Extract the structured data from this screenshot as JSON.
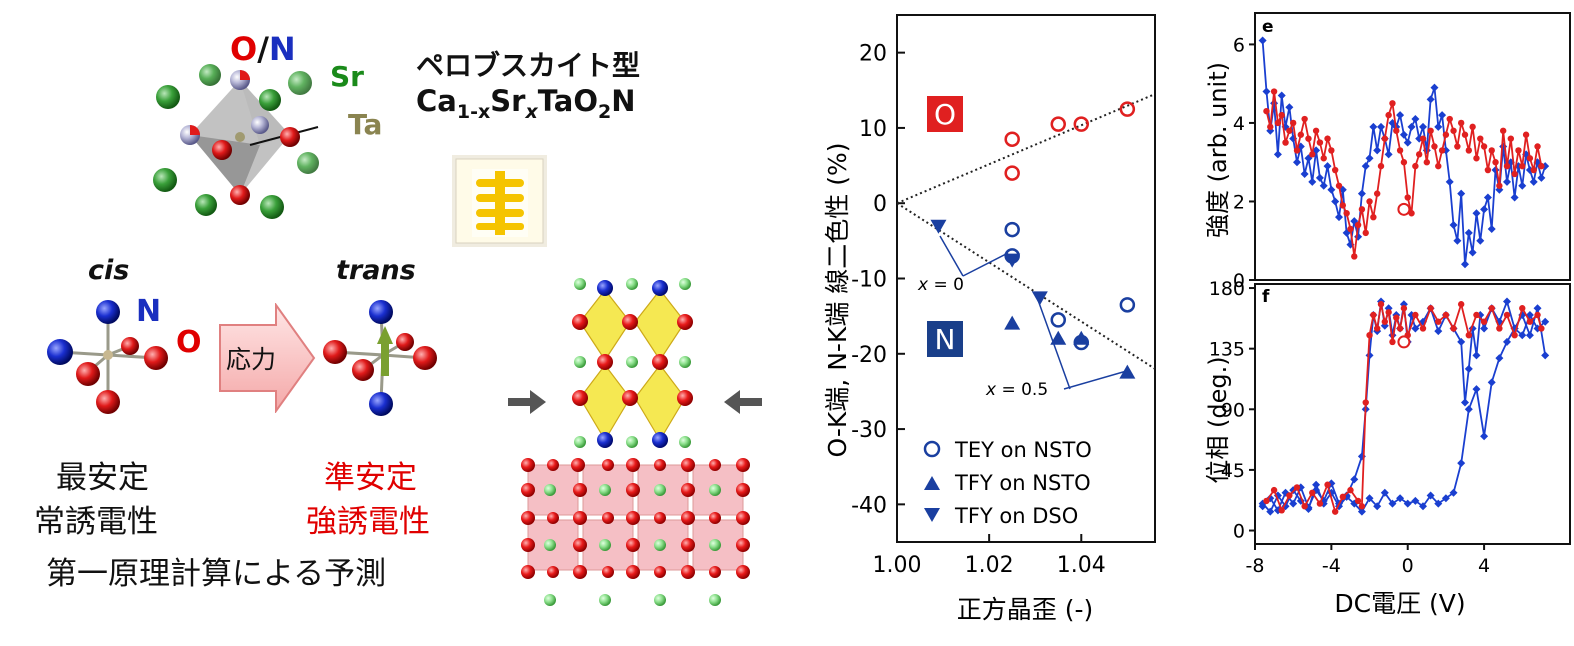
{
  "left_panel": {
    "on_label_o": "O",
    "on_label_slash": "/",
    "on_label_n": "N",
    "sr_label": "Sr",
    "ta_label": "Ta",
    "perovskite_title": "ペロブスカイト型",
    "formula_ca": "Ca",
    "formula_sub1": "1-x",
    "formula_sr": "Sr",
    "formula_subx": "x",
    "formula_tao": "TaO",
    "formula_sub2": "2",
    "formula_n": "N",
    "cis_label": "cis",
    "trans_label": "trans",
    "n_label": "N",
    "o_label": "O",
    "stress_label": "応力",
    "stable_line1": "最安定",
    "stable_line2": "常誘電性",
    "metastable_line1": "準安定",
    "metastable_line2": "強誘電性",
    "prediction": "第一原理計算による予測",
    "colors": {
      "oxygen": "#e8202a",
      "nitrogen": "#1e2fd0",
      "sr": "#2a9a2a",
      "ta": "#8a8a60"
    }
  },
  "chart_data": [
    {
      "type": "scatter",
      "title": "",
      "xlabel": "正方晶歪 (-)",
      "ylabel": "O-K端, N-K端 線二色性 (%)",
      "xlim": [
        1.0,
        1.056
      ],
      "ylim": [
        -45,
        25
      ],
      "xticks": [
        "1.00",
        "1.02",
        "1.04"
      ],
      "xtick_values": [
        1.0,
        1.02,
        1.04
      ],
      "yticks": [
        "20",
        "10",
        "0",
        "-10",
        "-20",
        "-30",
        "-40"
      ],
      "ytick_values": [
        20,
        10,
        0,
        -10,
        -20,
        -30,
        -40
      ],
      "box_o": "O",
      "box_n": "N",
      "annot_x0_var": "x",
      "annot_x0_val": " = 0",
      "annot_x05_var": "x",
      "annot_x05_val": " = 0.5",
      "legend": [
        "TEY on NSTO",
        "TFY on NSTO",
        "TFY on DSO"
      ],
      "series": [
        {
          "name": "O TEY",
          "color": "#e02020",
          "marker": "circle-open",
          "x": [
            1.025,
            1.025,
            1.035,
            1.04,
            1.05
          ],
          "y": [
            8.5,
            4.0,
            10.5,
            10.5,
            12.5
          ]
        },
        {
          "name": "TEY on NSTO",
          "color": "#1a3fa0",
          "marker": "circle-open",
          "x": [
            1.025,
            1.025,
            1.035,
            1.04,
            1.05
          ],
          "y": [
            -3.5,
            -7.0,
            -15.5,
            -18.5,
            -13.5
          ]
        },
        {
          "name": "TFY on NSTO",
          "color": "#1a3fa0",
          "marker": "triangle-up",
          "x": [
            1.025,
            1.035,
            1.04,
            1.05
          ],
          "y": [
            -16.0,
            -18.0,
            -18.0,
            -22.5
          ]
        },
        {
          "name": "TFY on DSO",
          "color": "#1a3fa0",
          "marker": "triangle-down",
          "x": [
            1.009,
            1.025,
            1.031
          ],
          "y": [
            -3.0,
            -7.5,
            -12.5
          ]
        }
      ],
      "trend_lines": [
        {
          "x": [
            1.0,
            1.056
          ],
          "y": [
            0,
            14.5
          ]
        },
        {
          "x": [
            1.0,
            1.056
          ],
          "y": [
            0,
            -22
          ]
        }
      ]
    },
    {
      "type": "line",
      "panel_label": "e",
      "ylabel": "強度 (arb. unit)",
      "xlim": [
        -8,
        8.5
      ],
      "ylim": [
        0,
        6.8
      ],
      "yticks": [
        "0",
        "2",
        "4",
        "6"
      ],
      "ytick_values": [
        0,
        2,
        4,
        6
      ],
      "series": [
        {
          "name": "blue",
          "color": "#1a3fd0",
          "marker": "diamond",
          "x": [
            -7.6,
            -7.4,
            -7.2,
            -7,
            -6.8,
            -6.6,
            -6.4,
            -6.2,
            -6,
            -5.8,
            -5.6,
            -5.4,
            -5.2,
            -5,
            -4.8,
            -4.6,
            -4.4,
            -4.2,
            -4,
            -3.8,
            -3.6,
            -3.4,
            -3.2,
            -3,
            -2.8,
            -2.6,
            -2.4,
            -2.2,
            -2,
            -1.8,
            -1.6,
            -1.4,
            -1.2,
            -1,
            -0.8,
            -0.6,
            -0.4,
            -0.2,
            0,
            0.2,
            0.4,
            0.6,
            0.8,
            1,
            1.2,
            1.4,
            1.6,
            1.8,
            2,
            2.2,
            2.4,
            2.6,
            2.8,
            3,
            3.2,
            3.4,
            3.6,
            3.8,
            4,
            4.2,
            4.4,
            4.6,
            4.8,
            5,
            5.2,
            5.4,
            5.6,
            5.8,
            6,
            6.2,
            6.4,
            6.6,
            6.8,
            7,
            7.2
          ],
          "y": [
            6.1,
            4.8,
            3.8,
            4.5,
            3.2,
            4.7,
            3.9,
            4.4,
            3.6,
            3.0,
            3.4,
            2.7,
            3.1,
            2.5,
            3.3,
            2.6,
            2.4,
            2.9,
            2.3,
            2.0,
            1.6,
            2.3,
            1.2,
            0.9,
            1.5,
            1.1,
            2.2,
            2.9,
            3.1,
            3.9,
            3.3,
            3.9,
            3.6,
            3.2,
            4.0,
            3.9,
            4.2,
            3.7,
            3.5,
            3.9,
            4.1,
            3.6,
            3.9,
            3.3,
            4.6,
            4.9,
            3.9,
            4.2,
            3.3,
            2.5,
            1.4,
            1.0,
            2.2,
            0.4,
            1.2,
            0.7,
            1.7,
            1.0,
            1.8,
            2.1,
            1.3,
            2.8,
            2.3,
            3.4,
            2.5,
            3.0,
            2.1,
            2.9,
            2.4,
            3.2,
            2.8,
            2.5,
            3.0,
            2.6,
            2.9
          ]
        },
        {
          "name": "red",
          "color": "#e02020",
          "marker": "circle",
          "x": [
            -7.4,
            -7.2,
            -7,
            -6.8,
            -6.6,
            -6.4,
            -6.2,
            -6,
            -5.8,
            -5.6,
            -5.4,
            -5.2,
            -5,
            -4.8,
            -4.6,
            -4.4,
            -4.2,
            -4,
            -3.8,
            -3.6,
            -3.4,
            -3.2,
            -3,
            -2.8,
            -2.6,
            -2.4,
            -2.2,
            -2,
            -1.8,
            -1.6,
            -1.4,
            -1.2,
            -1,
            -0.8,
            -0.6,
            -0.4,
            -0.2,
            0,
            0.2,
            0.4,
            0.6,
            0.8,
            1,
            1.2,
            1.4,
            1.6,
            1.8,
            2,
            2.2,
            2.4,
            2.6,
            2.8,
            3,
            3.2,
            3.4,
            3.6,
            3.8,
            4,
            4.2,
            4.4,
            4.6,
            4.8,
            5,
            5.2,
            5.4,
            5.6,
            5.8,
            6,
            6.2,
            6.4,
            6.6,
            6.8,
            7
          ],
          "y": [
            4.3,
            3.9,
            4.8,
            4.0,
            4.2,
            3.5,
            3.8,
            4.0,
            3.3,
            3.7,
            4.1,
            3.6,
            3.2,
            3.8,
            3.5,
            3.1,
            3.6,
            3.3,
            2.8,
            2.4,
            1.9,
            1.7,
            1.3,
            0.6,
            1.4,
            1.8,
            1.2,
            2.0,
            1.6,
            2.2,
            2.9,
            3.6,
            4.2,
            4.5,
            3.8,
            3.3,
            3.0,
            2.1,
            1.7,
            2.9,
            3.2,
            3.6,
            3.0,
            3.8,
            3.4,
            2.9,
            3.3,
            3.7,
            4.1,
            3.8,
            3.4,
            4.0,
            3.7,
            3.3,
            3.9,
            3.1,
            3.6,
            3.4,
            2.8,
            3.3,
            3.0,
            2.4,
            3.8,
            2.9,
            3.6,
            2.7,
            3.3,
            2.9,
            3.7,
            3.1,
            2.8,
            3.4,
            2.9
          ]
        }
      ],
      "open_marker": {
        "x": -0.2,
        "y": 1.8
      }
    },
    {
      "type": "line",
      "panel_label": "f",
      "ylabel": "位相 (deg.)",
      "xlabel": "DC電圧 (V)",
      "xlim": [
        -8,
        8.5
      ],
      "ylim": [
        -10,
        183
      ],
      "xticks": [
        "-8",
        "-4",
        "0",
        "4"
      ],
      "xtick_values": [
        -8,
        -4,
        0,
        4
      ],
      "yticks": [
        "0",
        "45",
        "90",
        "135",
        "180"
      ],
      "ytick_values": [
        0,
        45,
        90,
        135,
        180
      ],
      "series": [
        {
          "name": "blue",
          "color": "#1a3fd0",
          "marker": "diamond",
          "x": [
            -7.6,
            -7.2,
            -6.8,
            -6.4,
            -6,
            -5.6,
            -5.2,
            -4.8,
            -4.4,
            -4,
            -3.6,
            -3.2,
            -2.8,
            -2.4,
            -2.2,
            -2,
            -1.8,
            -1.6,
            -1.4,
            -1.2,
            -1,
            -0.8,
            -0.6,
            -0.4,
            -0.2,
            0,
            0.2,
            0.4,
            0.8,
            1.2,
            1.6,
            2,
            2.4,
            2.8,
            3,
            3.2,
            3.4,
            3.6,
            3.8,
            4,
            4.4,
            4.8,
            5.2,
            5.6,
            6,
            6.4,
            6.8,
            7.2
          ],
          "y": [
            18,
            24,
            15,
            28,
            20,
            32,
            17,
            30,
            22,
            35,
            20,
            26,
            38,
            55,
            90,
            130,
            160,
            148,
            170,
            152,
            165,
            145,
            160,
            150,
            168,
            140,
            160,
            150,
            155,
            165,
            148,
            160,
            150,
            140,
            95,
            120,
            150,
            130,
            160,
            150,
            165,
            155,
            170,
            150,
            160,
            145,
            165,
            130
          ]
        },
        {
          "name": "blue-lower",
          "color": "#1a3fd0",
          "marker": "diamond",
          "x": [
            -7.6,
            -7.2,
            -6.8,
            -6.4,
            -6,
            -5.6,
            -5.2,
            -4.8,
            -4.4,
            -4,
            -3.6,
            -3.2,
            -2.8,
            -2.4,
            -2,
            -1.6,
            -1.2,
            -0.8,
            -0.4,
            0,
            0.4,
            0.8,
            1.2,
            1.6,
            2,
            2.4,
            2.8,
            3.2,
            3.6,
            4,
            4.4,
            4.8,
            5.2,
            5.6,
            6,
            6.4,
            6.8,
            7.2
          ],
          "y": [
            20,
            14,
            26,
            18,
            30,
            22,
            16,
            34,
            20,
            28,
            18,
            25,
            20,
            14,
            24,
            18,
            28,
            20,
            24,
            20,
            22,
            18,
            26,
            20,
            24,
            28,
            50,
            90,
            105,
            70,
            110,
            128,
            140,
            150,
            145,
            160,
            150,
            155
          ]
        },
        {
          "name": "red",
          "color": "#e02020",
          "marker": "circle",
          "x": [
            -7.4,
            -7,
            -6.6,
            -6.2,
            -5.8,
            -5.4,
            -5,
            -4.6,
            -4.2,
            -3.8,
            -3.4,
            -3,
            -2.6,
            -2.4,
            -2.2,
            -2,
            -1.8,
            -1.6,
            -1.4,
            -1.2,
            -1,
            -0.8,
            -0.6,
            -0.4,
            -0.2,
            0,
            0.4,
            0.8,
            1.2,
            1.6,
            2,
            2.4,
            2.8,
            3.2,
            3.6,
            4,
            4.4,
            4.8,
            5.2,
            5.6,
            6,
            6.4,
            6.8,
            7
          ],
          "y": [
            22,
            30,
            15,
            26,
            32,
            18,
            28,
            20,
            34,
            14,
            25,
            30,
            22,
            18,
            95,
            145,
            160,
            150,
            168,
            155,
            162,
            140,
            158,
            150,
            165,
            145,
            160,
            150,
            165,
            155,
            160,
            150,
            168,
            145,
            160,
            155,
            165,
            150,
            160,
            145,
            165,
            155,
            160,
            150
          ]
        }
      ],
      "open_marker": {
        "x": -0.2,
        "y": 140
      }
    }
  ]
}
